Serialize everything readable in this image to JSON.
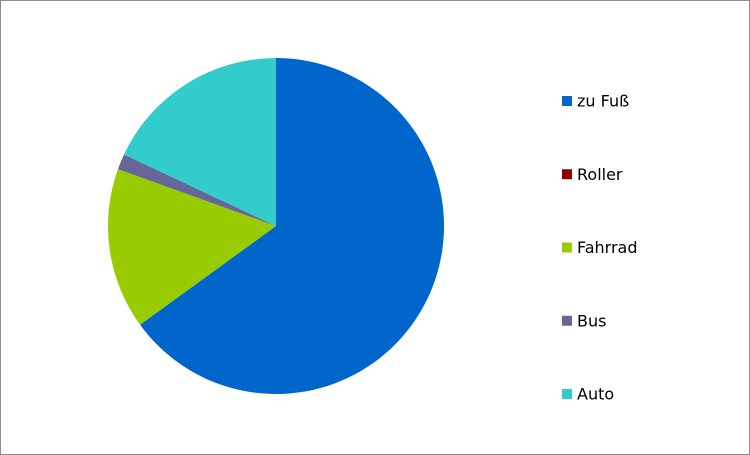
{
  "chart_data": {
    "type": "pie",
    "categories": [
      "zu Fuß",
      "Roller",
      "Fahrrad",
      "Bus",
      "Auto"
    ],
    "values": [
      65,
      0,
      15.5,
      1.5,
      18
    ],
    "colors": [
      "#0066cc",
      "#8b0000",
      "#99cc00",
      "#666699",
      "#33cccc"
    ],
    "legend": "right"
  }
}
